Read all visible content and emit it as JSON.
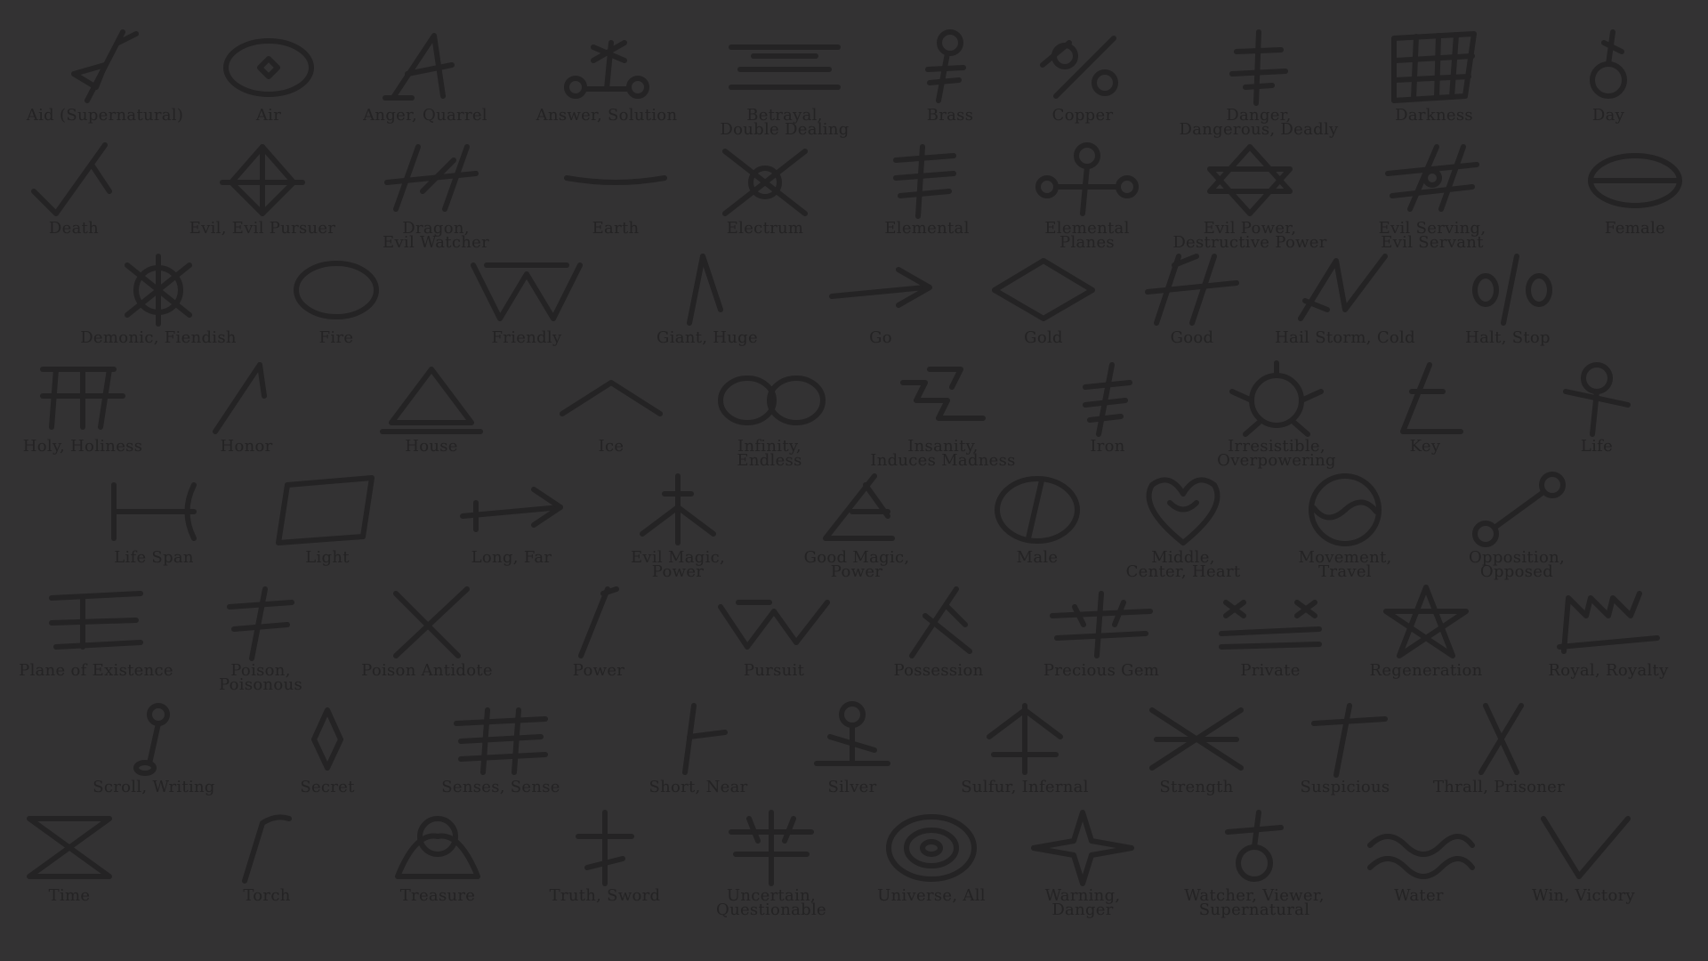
{
  "colors": {
    "background": "#333233",
    "ink": "#242324"
  },
  "rows": [
    [
      {
        "label": "Aid (Supernatural)",
        "icon": "aid-supernatural-rune"
      },
      {
        "label": "Air",
        "icon": "air-rune"
      },
      {
        "label": "Anger, Quarrel",
        "icon": "anger-quarrel-rune"
      },
      {
        "label": "Answer, Solution",
        "icon": "answer-solution-rune"
      },
      {
        "label": "Betrayal,\nDouble Dealing",
        "icon": "betrayal-rune"
      },
      {
        "label": "Brass",
        "icon": "brass-rune"
      },
      {
        "label": "Copper",
        "icon": "copper-rune"
      },
      {
        "label": "Danger,\nDangerous, Deadly",
        "icon": "danger-rune"
      },
      {
        "label": "Darkness",
        "icon": "darkness-rune"
      },
      {
        "label": "Day",
        "icon": "day-rune"
      }
    ],
    [
      {
        "label": "Death",
        "icon": "death-rune"
      },
      {
        "label": "Evil, Evil Pursuer",
        "icon": "evil-pursuer-rune"
      },
      {
        "label": "Dragon,\nEvil Watcher",
        "icon": "dragon-rune"
      },
      {
        "label": "Earth",
        "icon": "earth-rune"
      },
      {
        "label": "Electrum",
        "icon": "electrum-rune"
      },
      {
        "label": "Elemental",
        "icon": "elemental-rune"
      },
      {
        "label": "Elemental\nPlanes",
        "icon": "elemental-planes-rune"
      },
      {
        "label": "Evil Power,\nDestructive Power",
        "icon": "evil-power-rune"
      },
      {
        "label": "Evil Serving,\nEvil Servant",
        "icon": "evil-serving-rune"
      },
      {
        "label": "Female",
        "icon": "female-rune"
      }
    ],
    [
      {
        "label": "Demonic, Fiendish",
        "icon": "demonic-rune"
      },
      {
        "label": "Fire",
        "icon": "fire-rune"
      },
      {
        "label": "Friendly",
        "icon": "friendly-rune"
      },
      {
        "label": "Giant, Huge",
        "icon": "giant-rune"
      },
      {
        "label": "Go",
        "icon": "go-rune"
      },
      {
        "label": "Gold",
        "icon": "gold-rune"
      },
      {
        "label": "Good",
        "icon": "good-rune"
      },
      {
        "label": "Hail Storm, Cold",
        "icon": "hail-storm-rune"
      },
      {
        "label": "Halt, Stop",
        "icon": "halt-rune"
      }
    ],
    [
      {
        "label": "Holy, Holiness",
        "icon": "holy-rune"
      },
      {
        "label": "Honor",
        "icon": "honor-rune"
      },
      {
        "label": "House",
        "icon": "house-rune"
      },
      {
        "label": "Ice",
        "icon": "ice-rune"
      },
      {
        "label": "Infinity,\nEndless",
        "icon": "infinity-rune"
      },
      {
        "label": "Insanity,\nInduces Madness",
        "icon": "insanity-rune"
      },
      {
        "label": "Iron",
        "icon": "iron-rune"
      },
      {
        "label": "Irresistible,\nOverpowering",
        "icon": "irresistible-rune"
      },
      {
        "label": "Key",
        "icon": "key-rune"
      },
      {
        "label": "Life",
        "icon": "life-rune"
      }
    ],
    [
      {
        "label": "Life Span",
        "icon": "life-span-rune"
      },
      {
        "label": "Light",
        "icon": "light-rune"
      },
      {
        "label": "Long, Far",
        "icon": "long-far-rune"
      },
      {
        "label": "Evil Magic,\nPower",
        "icon": "evil-magic-rune"
      },
      {
        "label": "Good Magic,\nPower",
        "icon": "good-magic-rune"
      },
      {
        "label": "Male",
        "icon": "male-rune"
      },
      {
        "label": "Middle,\nCenter, Heart",
        "icon": "middle-heart-rune"
      },
      {
        "label": "Movement,\nTravel",
        "icon": "movement-rune"
      },
      {
        "label": "Opposition,\nOpposed",
        "icon": "opposition-rune"
      }
    ],
    [
      {
        "label": "Plane of Existence",
        "icon": "plane-of-existence-rune"
      },
      {
        "label": "Poison,\nPoisonous",
        "icon": "poison-rune"
      },
      {
        "label": "Poison Antidote",
        "icon": "poison-antidote-rune"
      },
      {
        "label": "Power",
        "icon": "power-rune"
      },
      {
        "label": "Pursuit",
        "icon": "pursuit-rune"
      },
      {
        "label": "Possession",
        "icon": "possession-rune"
      },
      {
        "label": "Precious Gem",
        "icon": "precious-gem-rune"
      },
      {
        "label": "Private",
        "icon": "private-rune"
      },
      {
        "label": "Regeneration",
        "icon": "regeneration-rune"
      },
      {
        "label": "Royal, Royalty",
        "icon": "royal-rune"
      }
    ],
    [
      {
        "label": "Scroll, Writing",
        "icon": "scroll-rune"
      },
      {
        "label": "Secret",
        "icon": "secret-rune"
      },
      {
        "label": "Senses, Sense",
        "icon": "senses-rune"
      },
      {
        "label": "Short, Near",
        "icon": "short-near-rune"
      },
      {
        "label": "Silver",
        "icon": "silver-rune"
      },
      {
        "label": "Sulfur, Infernal",
        "icon": "sulfur-rune"
      },
      {
        "label": "Strength",
        "icon": "strength-rune"
      },
      {
        "label": "Suspicious",
        "icon": "suspicious-rune"
      },
      {
        "label": "Thrall, Prisoner",
        "icon": "thrall-rune"
      }
    ],
    [
      {
        "label": "Time",
        "icon": "time-rune"
      },
      {
        "label": "Torch",
        "icon": "torch-rune"
      },
      {
        "label": "Treasure",
        "icon": "treasure-rune"
      },
      {
        "label": "Truth, Sword",
        "icon": "truth-sword-rune"
      },
      {
        "label": "Uncertain,\nQuestionable",
        "icon": "uncertain-rune"
      },
      {
        "label": "Universe, All",
        "icon": "universe-rune"
      },
      {
        "label": "Warning,\nDanger",
        "icon": "warning-rune"
      },
      {
        "label": "Watcher, Viewer,\nSupernatural",
        "icon": "watcher-rune"
      },
      {
        "label": "Water",
        "icon": "water-rune"
      },
      {
        "label": "Win, Victory",
        "icon": "victory-rune"
      }
    ]
  ]
}
